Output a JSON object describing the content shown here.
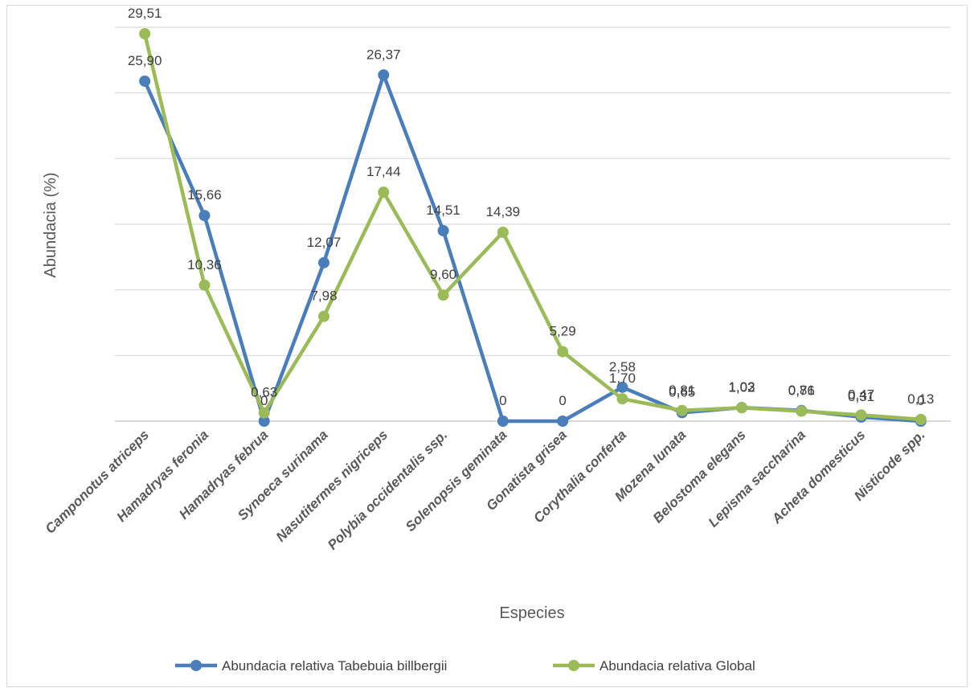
{
  "chart_data": {
    "type": "line",
    "title": "",
    "xlabel": "Especies",
    "ylabel": "Abundacia (%)",
    "ylim": [
      0,
      30
    ],
    "grid": true,
    "legend_position": "bottom",
    "categories": [
      "Camponotus atriceps",
      "Hamadryas feronia",
      "Hamadryas februa",
      "Synoeca surinama",
      "Nasutitermes nigriceps",
      "Polybia occidentalis ssp.",
      "Solenopsis geminata",
      "Gonatista grisea",
      "Corythalia conferta",
      "Mozena lunata",
      "Belostoma elegans",
      "Lepisma saccharina",
      "Acheta domesticus",
      "Nisticode spp."
    ],
    "series": [
      {
        "name": "Abundacia relativa Tabebuia billbergii",
        "color": "#4a7ebb",
        "values": [
          25.9,
          15.66,
          0,
          12.07,
          26.37,
          14.51,
          0,
          0,
          2.58,
          0.65,
          1.03,
          0.81,
          0.31,
          0
        ],
        "labels": [
          "25,90",
          "15,66",
          "0",
          "12,07",
          "26,37",
          "14,51",
          "0",
          "0",
          "2,58",
          "0,65",
          "1,03",
          "0,81",
          "0,31",
          "0"
        ]
      },
      {
        "name": "Abundacia relativa  Global",
        "color": "#9bbb59",
        "values": [
          29.51,
          10.36,
          0.63,
          7.98,
          17.44,
          9.6,
          14.39,
          5.29,
          1.7,
          0.81,
          1.02,
          0.76,
          0.47,
          0.13
        ],
        "labels": [
          "29,51",
          "10,36",
          "0,63",
          "7,98",
          "17,44",
          "9,60",
          "14,39",
          "5,29",
          "1,70",
          "0,81",
          "1,02",
          "0,76",
          "0,47",
          "0,13"
        ]
      }
    ]
  }
}
